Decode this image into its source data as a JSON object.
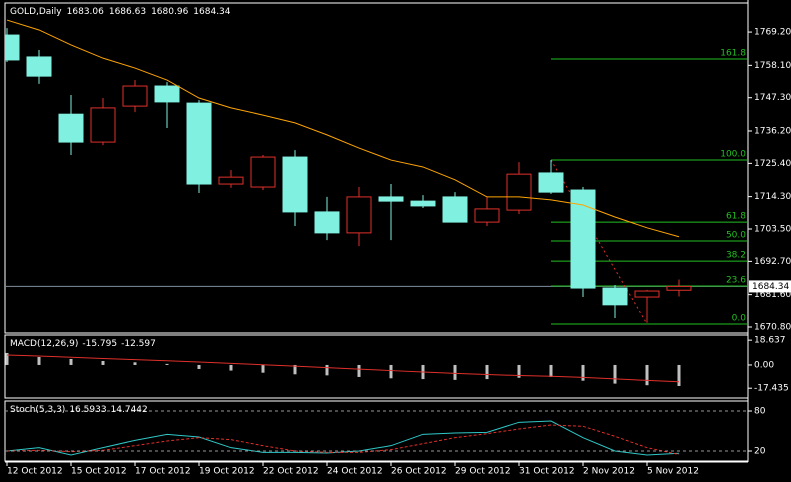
{
  "chart_data": [
    {
      "type": "candlestick",
      "title": "GOLD,Daily",
      "categories": [
        "12 Oct 2012",
        null,
        "15 Oct 2012",
        null,
        "17 Oct 2012",
        null,
        "19 Oct 2012",
        null,
        "22 Oct 2012",
        null,
        "24 Oct 2012",
        null,
        "26 Oct 2012",
        null,
        "29 Oct 2012",
        null,
        "31 Oct 2012",
        null,
        "2 Nov 2012",
        null,
        "5 Nov 2012",
        null
      ],
      "open": [
        1768.2,
        1760.9,
        1741.8,
        1732.5,
        1744.5,
        1751.2,
        1745.5,
        1718.5,
        1717.5,
        1727.5,
        1709.2,
        1702.2,
        1714.2,
        1712.8,
        1714.2,
        1705.8,
        1709.8,
        1722.2,
        1716.5,
        1683.8,
        1680.8,
        1683.06
      ],
      "high": [
        1770.5,
        1763.2,
        1748.2,
        1747.2,
        1753.2,
        1752.5,
        1746.5,
        1723.2,
        1728.2,
        1729.8,
        1714.2,
        1717.5,
        1718.5,
        1714.8,
        1715.8,
        1714.2,
        1725.8,
        1726.5,
        1717.5,
        1684.8,
        1683.2,
        1686.63
      ],
      "low": [
        1759.2,
        1751.9,
        1728.2,
        1731.5,
        1742.5,
        1737.2,
        1715.5,
        1717.2,
        1716.5,
        1704.5,
        1699.8,
        1697.8,
        1699.8,
        1710.5,
        1705.8,
        1704.5,
        1708.5,
        1715.2,
        1680.8,
        1673.8,
        1672.2,
        1680.96
      ],
      "close": [
        1759.9,
        1754.5,
        1732.5,
        1743.9,
        1751.2,
        1745.9,
        1718.5,
        1720.8,
        1727.5,
        1709.2,
        1702.2,
        1714.2,
        1712.8,
        1711.2,
        1705.8,
        1710.2,
        1721.8,
        1715.8,
        1683.8,
        1678.2,
        1682.8,
        1684.34
      ],
      "up_color": "#e0302a",
      "down_color": "#80f0e0",
      "ma": {
        "color": "#ffa500",
        "values": [
          1773.2,
          1769.9,
          1764.9,
          1760.5,
          1757.2,
          1753.2,
          1747.2,
          1743.9,
          1741.5,
          1738.9,
          1734.9,
          1730.5,
          1726.5,
          1724.2,
          1719.9,
          1714.2,
          1714.2,
          1713.2,
          1711.5,
          1707.5,
          1703.9,
          1700.9
        ]
      },
      "fib": {
        "color": "#22c022",
        "trend_color": "#e0302a",
        "levels": [
          {
            "value": 1760.2,
            "label": "161.8"
          },
          {
            "value": 1726.5,
            "label": "100.0"
          },
          {
            "value": 1705.8,
            "label": "61.8"
          },
          {
            "value": 1699.5,
            "label": "50.0"
          },
          {
            "value": 1692.8,
            "label": "38.2"
          },
          {
            "value": 1684.5,
            "label": "23.6"
          },
          {
            "value": 1671.8,
            "label": "0.0"
          }
        ]
      },
      "bid": 1684.34,
      "ylim": [
        1668.8,
        1778.9
      ],
      "yticks": [
        {
          "value": 1769.2,
          "label": "1769.20"
        },
        {
          "value": 1758.1,
          "label": "1758.10"
        },
        {
          "value": 1747.3,
          "label": "1747.30"
        },
        {
          "value": 1736.2,
          "label": "1736.20"
        },
        {
          "value": 1725.4,
          "label": "1725.40"
        },
        {
          "value": 1714.3,
          "label": "1714.30"
        },
        {
          "value": 1703.5,
          "label": "1703.50"
        },
        {
          "value": 1692.7,
          "label": "1692.70"
        },
        {
          "value": 1681.6,
          "label": "1681.60"
        },
        {
          "value": 1670.8,
          "label": "1670.80"
        }
      ]
    },
    {
      "type": "macd",
      "title": "MACD(12,26,9)",
      "series": [
        {
          "color": "#c0c0c0",
          "values": [
            9,
            6,
            4.5,
            3,
            2,
            0.8,
            -3,
            -4.2,
            -5.8,
            -7,
            -7.8,
            -9,
            -10,
            -10.6,
            -11.2,
            -10.6,
            -9.6,
            -9,
            -11.8,
            -14,
            -15.2,
            -15.795
          ]
        },
        {
          "color": "#e0302a",
          "values": [
            7.5,
            6.7,
            5.8,
            4.9,
            4.0,
            3.2,
            2.2,
            1.2,
            0.2,
            -0.9,
            -2.0,
            -3.1,
            -4.2,
            -5.3,
            -6.3,
            -7.2,
            -7.9,
            -8.5,
            -9.3,
            -10.4,
            -11.6,
            -12.597
          ]
        }
      ],
      "ylim": [
        -24.8,
        22.5
      ],
      "yticks": [
        18.637,
        {
          "value": 0,
          "label": "0.00"
        },
        -17.435
      ]
    },
    {
      "type": "stoch",
      "title": "Stoch(5,3,3)",
      "series": [
        {
          "color": "#30c8c8",
          "values": [
            20,
            25,
            14,
            25,
            36,
            45,
            41,
            25,
            18,
            18,
            17,
            20,
            28,
            45,
            47,
            48,
            63,
            65,
            40,
            20,
            14,
            16.5933
          ]
        },
        {
          "color": "#e0302a",
          "dashed": true,
          "values": [
            20,
            21,
            19,
            21,
            28,
            35,
            40,
            37,
            28,
            20,
            18,
            18,
            22,
            31,
            40,
            46,
            53,
            59,
            57,
            42,
            25,
            14.7442
          ]
        }
      ],
      "ylim": [
        5,
        95
      ],
      "yticks": [
        80,
        20
      ]
    }
  ]
}
